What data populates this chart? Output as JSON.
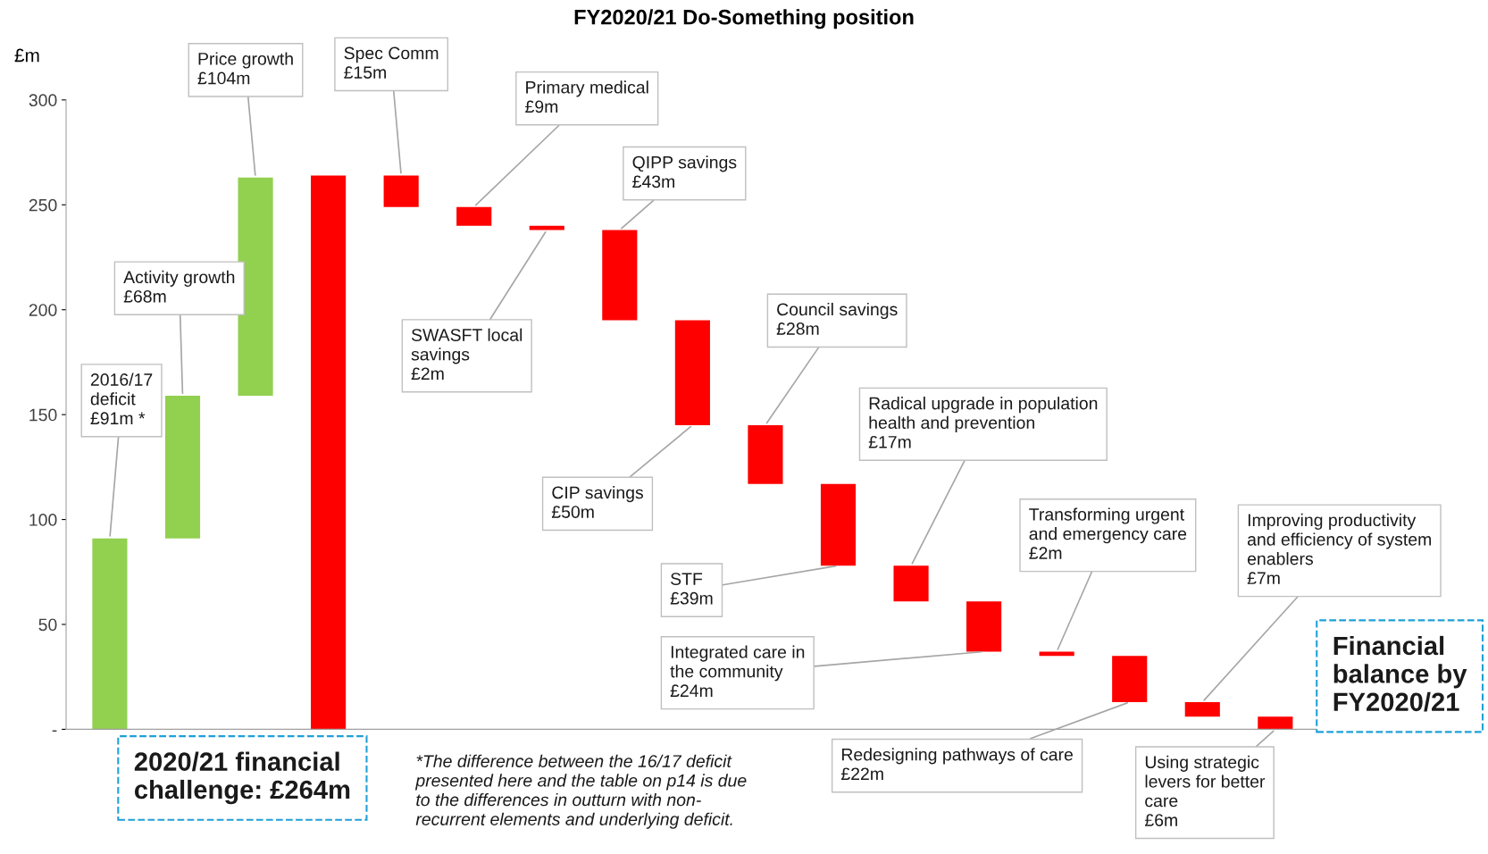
{
  "chart_data": {
    "type": "bar",
    "title": "FY2020/21 Do-Something position",
    "ylabel": "£m",
    "categories": [
      null,
      null,
      null,
      null,
      null,
      null,
      null,
      null,
      null,
      null,
      null,
      null,
      null,
      null,
      null,
      null,
      null
    ],
    "values": [
      91,
      68,
      104,
      264,
      -15,
      -9,
      -2,
      -43,
      -50,
      -28,
      -39,
      -17,
      -24,
      -2,
      -22,
      -7,
      -6
    ],
    "base": [
      0,
      91,
      159,
      0,
      264,
      249,
      240,
      238,
      195,
      145,
      117,
      78,
      61,
      37,
      35,
      13,
      6
    ],
    "colors": [
      "#92d050",
      "#92d050",
      "#92d050",
      "#ff0000",
      "#ff0000",
      "#ff0000",
      "#ff0000",
      "#ff0000",
      "#ff0000",
      "#ff0000",
      "#ff0000",
      "#ff0000",
      "#ff0000",
      "#ff0000",
      "#ff0000",
      "#ff0000",
      "#ff0000"
    ],
    "ylim": [
      0,
      300
    ],
    "yticks": [
      {
        "value": 0,
        "label": "-"
      },
      50,
      100,
      150,
      200,
      250,
      300
    ],
    "grid": false,
    "legend": false,
    "annotations": [
      "2016/17\ndeficit\n£91m *",
      "Activity growth\n£68m",
      "Price growth\n£104m",
      "Spec Comm\n£15m",
      "Primary medical\n£9m",
      "SWASFT local\nsavings\n£2m",
      "QIPP savings\n£43m",
      "CIP savings\n£50m",
      "Council savings\n£28m",
      "STF\n£39m",
      "Radical upgrade in population\nhealth and prevention\n£17m",
      "Integrated care in\nthe community\n£24m",
      "Transforming urgent\nand emergency care\n£2m",
      "Redesigning pathways of care\n£22m",
      "Improving productivity\nand efficiency of system\nenablers\n£7m",
      "Using strategic\nlevers for better\ncare\n£6m",
      "2020/21 financial\nchallenge: £264m",
      "Financial\nbalance by\nFY2020/21",
      "*The difference between the 16/17 deficit\npresented here and the table on p14 is due\nto the differences in outturn with non-\nrecurrent elements and underlying deficit."
    ]
  }
}
